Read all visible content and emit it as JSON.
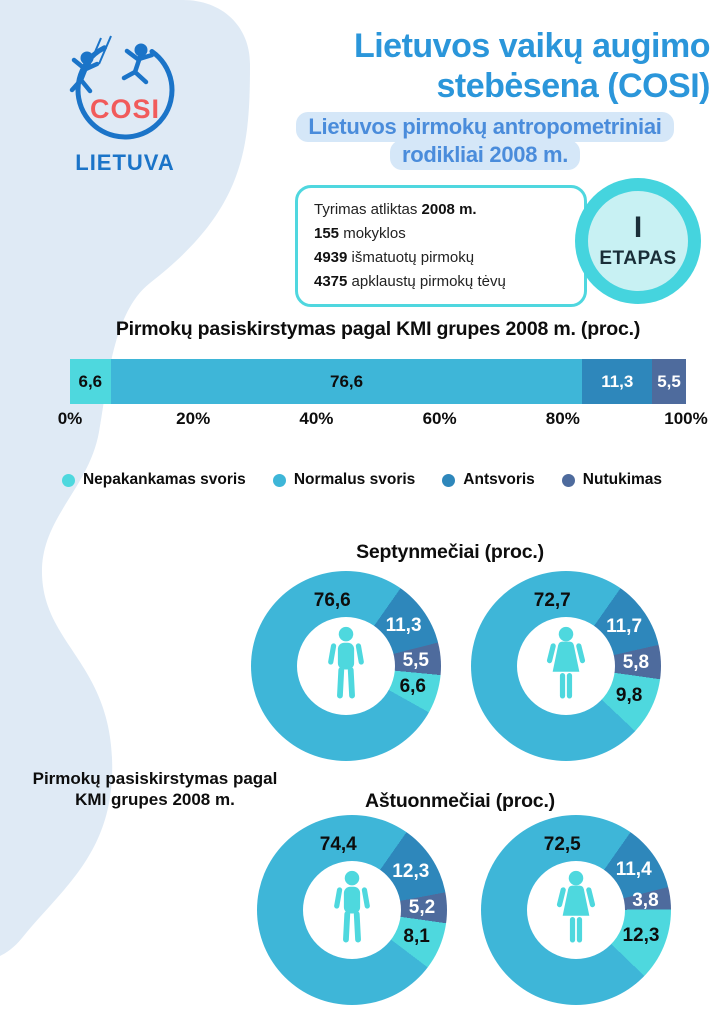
{
  "logo": {
    "cosi": "COSI",
    "country": "LIETUVA"
  },
  "header": {
    "title_line1": "Lietuvos vaikų augimo",
    "title_line2": "stebėsena (COSI)",
    "subtitle_line1": "Lietuvos pirmokų antropometriniai",
    "subtitle_line2": "rodikliai 2008 m."
  },
  "stage": {
    "numeral": "I",
    "label": "ETAPAS"
  },
  "info_box": {
    "lines": [
      {
        "pre": "Tyrimas atliktas ",
        "strong": "2008 m.",
        "post": ""
      },
      {
        "pre": "",
        "strong": "155",
        "post": " mokyklos"
      },
      {
        "pre": "",
        "strong": "4939",
        "post": " išmatuotų pirmokų"
      },
      {
        "pre": "",
        "strong": "4375",
        "post": " apklaustų pirmokų tėvų"
      }
    ]
  },
  "legend": {
    "items": [
      {
        "label": "Nepakankamas svoris",
        "color": "#4ed8de"
      },
      {
        "label": "Normalus svoris",
        "color": "#3eb6d8"
      },
      {
        "label": "Antsvoris",
        "color": "#2e87bb"
      },
      {
        "label": "Nutukimas",
        "color": "#4e6b9d"
      }
    ]
  },
  "sections": {
    "seven": {
      "title": "Septynmečiai (proc.)"
    },
    "eight": {
      "title": "Aštuonmečiai (proc.)"
    },
    "left_note": {
      "line1": "Pirmokų pasiskirstymas pagal",
      "line2": "KMI grupes 2008 m."
    }
  },
  "colors": {
    "background_blob": "#dfeaf5",
    "title_blue": "#2b96da",
    "subtitle_blue": "#4a8cdb",
    "subtitle_highlight": "#d5e7f8",
    "logo_blue": "#1b74c8",
    "logo_red": "#f15b5b",
    "teal_accent": "#4fd7df",
    "badge_ring": "#45d4de",
    "badge_inner": "#c8f1f3",
    "person_icon": "#4ed8de"
  },
  "chart_data": [
    {
      "type": "bar",
      "stacked": true,
      "orientation": "horizontal",
      "title": "Pirmokų pasiskirstymas pagal KMI grupes 2008 m. (proc.)",
      "categories": [
        "Nepakankamas svoris",
        "Normalus svoris",
        "Antsvoris",
        "Nutukimas"
      ],
      "values": [
        6.6,
        76.6,
        11.3,
        5.5
      ],
      "labels": [
        "6,6",
        "76,6",
        "11,3",
        "5,5"
      ],
      "colors": [
        "#4ed8de",
        "#3eb6d8",
        "#2e87bb",
        "#4e6b9d"
      ],
      "label_colors": [
        "#0d0d0d",
        "#0d0d0d",
        "#ffffff",
        "#ffffff"
      ],
      "x_ticks": [
        "0%",
        "20%",
        "40%",
        "60%",
        "80%",
        "100%"
      ],
      "xlim": [
        0,
        100
      ],
      "legend_position": "below",
      "grid": false
    },
    {
      "type": "pie",
      "group_title": "Septynmečiai (proc.)",
      "person": "boy",
      "categories": [
        "Nepakankamas svoris",
        "Normalus svoris",
        "Antsvoris",
        "Nutukimas"
      ],
      "values": [
        6.6,
        76.6,
        11.3,
        5.5
      ],
      "labels": [
        "6,6",
        "76,6",
        "11,3",
        "5,5"
      ]
    },
    {
      "type": "pie",
      "group_title": "Septynmečiai (proc.)",
      "person": "girl",
      "categories": [
        "Nepakankamas svoris",
        "Normalus svoris",
        "Antsvoris",
        "Nutukimas"
      ],
      "values": [
        9.8,
        72.7,
        11.7,
        5.8
      ],
      "labels": [
        "9,8",
        "72,7",
        "11,7",
        "5,8"
      ]
    },
    {
      "type": "pie",
      "group_title": "Aštuonmečiai (proc.)",
      "person": "boy",
      "categories": [
        "Nepakankamas svoris",
        "Normalus svoris",
        "Antsvoris",
        "Nutukimas"
      ],
      "values": [
        8.1,
        74.4,
        12.3,
        5.2
      ],
      "labels": [
        "8,1",
        "74,4",
        "12,3",
        "5,2"
      ]
    },
    {
      "type": "pie",
      "group_title": "Aštuonmečiai (proc.)",
      "person": "girl",
      "categories": [
        "Nepakankamas svoris",
        "Normalus svoris",
        "Antsvoris",
        "Nutukimas"
      ],
      "values": [
        12.3,
        72.5,
        11.4,
        3.8
      ],
      "labels": [
        "12,3",
        "72,5",
        "11,4",
        "3,8"
      ]
    }
  ]
}
